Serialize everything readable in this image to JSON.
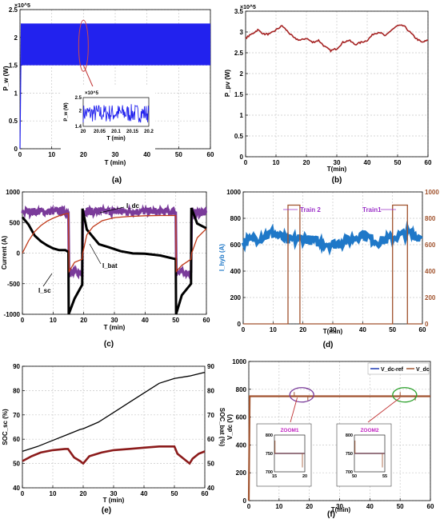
{
  "chart_data": [
    {
      "panel": "a",
      "caption": "(a)",
      "type": "line",
      "ylabel": "P_w (W)",
      "xlabel": "T (min)",
      "exponent": "×10^5",
      "xlim": [
        0,
        60
      ],
      "ylim": [
        0,
        2.5
      ],
      "xticks": [
        "0",
        "10",
        "20",
        "30",
        "40",
        "50",
        "60"
      ],
      "yticks": [
        "0",
        "0.5",
        "1",
        "1.5",
        "2",
        "2.5"
      ],
      "series": [
        {
          "color": "#2222ee",
          "band": [
            1.5,
            2.25
          ]
        }
      ],
      "inset": {
        "ylabel": "P_w (W)",
        "xlabel": "T (min)",
        "exponent": "×10^5",
        "xlim": [
          20,
          20.2
        ],
        "ylim": [
          1.4,
          2.5
        ],
        "xticks": [
          "20",
          "20.05",
          "20.1",
          "20.15",
          "20.2"
        ],
        "yticks": [
          "1.4",
          "2",
          "2.5"
        ]
      }
    },
    {
      "panel": "b",
      "caption": "(b)",
      "type": "line",
      "ylabel": "P_pv (W)",
      "xlabel": "T(min)",
      "exponent": "×10^5",
      "xlim": [
        0,
        60
      ],
      "ylim": [
        0,
        3.5
      ],
      "xticks": [
        "0",
        "10",
        "20",
        "30",
        "40",
        "50",
        "60"
      ],
      "yticks": [
        "0",
        "0.5",
        "1",
        "1.5",
        "2",
        "2.5",
        "3",
        "3.5"
      ],
      "series": [
        {
          "color": "#a52222",
          "x": [
            0,
            2,
            4,
            6,
            8,
            10,
            12,
            14,
            16,
            18,
            20,
            22,
            24,
            26,
            28,
            30,
            32,
            34,
            36,
            38,
            40,
            42,
            44,
            46,
            48,
            50,
            52,
            54,
            56,
            58,
            60
          ],
          "y": [
            2.85,
            2.95,
            3.05,
            2.95,
            2.95,
            3.05,
            3.15,
            3.0,
            2.85,
            2.8,
            2.85,
            2.75,
            2.8,
            2.65,
            2.55,
            2.6,
            2.75,
            2.8,
            2.7,
            2.75,
            2.8,
            2.95,
            3.0,
            2.9,
            3.05,
            3.15,
            3.15,
            3.0,
            2.85,
            2.75,
            2.8
          ]
        }
      ]
    },
    {
      "panel": "c",
      "caption": "(c)",
      "type": "line",
      "ylabel": "Current (A)",
      "xlabel": "T (min)",
      "xlim": [
        0,
        60
      ],
      "ylim": [
        -1000,
        1000
      ],
      "xticks": [
        "0",
        "10",
        "20",
        "30",
        "40",
        "50",
        "60"
      ],
      "yticks": [
        "-1000",
        "-500",
        "0",
        "500",
        "1000"
      ],
      "annotations": [
        "I_dc",
        "I_sc",
        "I_bat"
      ],
      "series": [
        {
          "name": "I_dc",
          "color": "#7a3b9a",
          "x": [
            0,
            15,
            15.2,
            19.5,
            19.7,
            50,
            50.2,
            55,
            55.2,
            60
          ],
          "y": [
            680,
            680,
            -320,
            -320,
            680,
            680,
            -320,
            -320,
            660,
            660
          ]
        },
        {
          "name": "I_bat",
          "color": "#000000",
          "x": [
            0,
            2,
            4,
            6,
            8,
            10,
            12,
            14,
            15,
            15.1,
            17,
            19.5,
            19.6,
            21,
            23,
            25,
            28,
            32,
            36,
            40,
            45,
            50,
            50.1,
            52,
            55,
            55.1,
            57,
            60
          ],
          "y": [
            600,
            450,
            300,
            200,
            120,
            80,
            50,
            30,
            20,
            -1000,
            -750,
            -500,
            740,
            400,
            250,
            150,
            80,
            30,
            10,
            -10,
            -40,
            -80,
            -1000,
            -700,
            -500,
            750,
            500,
            400
          ]
        },
        {
          "name": "I_sc",
          "color": "#c03a1a",
          "x": [
            0,
            2,
            4,
            6,
            8,
            10,
            12,
            14,
            15,
            15.2,
            17,
            19.5,
            19.7,
            21,
            23,
            26,
            30,
            35,
            40,
            45,
            50,
            50.2,
            52,
            55,
            55.2,
            57,
            60
          ],
          "y": [
            0,
            200,
            350,
            450,
            520,
            570,
            610,
            640,
            650,
            -300,
            -150,
            -100,
            0,
            300,
            430,
            530,
            580,
            600,
            610,
            615,
            615,
            -300,
            -200,
            -100,
            0,
            250,
            400
          ]
        }
      ]
    },
    {
      "panel": "d",
      "caption": "(d)",
      "type": "line",
      "ylabel": "I_hyb (A)",
      "xlabel": "T(min)",
      "xlim": [
        0,
        60
      ],
      "ylim": [
        0,
        1000
      ],
      "y2lim": [
        0,
        1000
      ],
      "xticks": [
        "0",
        "10",
        "20",
        "30",
        "40",
        "50",
        "60"
      ],
      "yticks": [
        "0",
        "200",
        "400",
        "600",
        "800",
        "1000"
      ],
      "y2ticks": [
        "0",
        "200",
        "400",
        "600",
        "800",
        "1000"
      ],
      "annotations": [
        "Train 2",
        "Train1"
      ],
      "series": [
        {
          "name": "I_hyb",
          "color": "#1f78c8",
          "x": [
            0,
            5,
            10,
            15,
            20,
            25,
            30,
            35,
            40,
            45,
            50,
            55,
            60
          ],
          "y": [
            620,
            650,
            690,
            630,
            650,
            620,
            600,
            630,
            680,
            620,
            650,
            690,
            650
          ]
        },
        {
          "name": "Train",
          "color": "#a0522d",
          "x": [
            0,
            15,
            15,
            19,
            19,
            50,
            50,
            55,
            55,
            60
          ],
          "y": [
            0,
            0,
            900,
            900,
            0,
            0,
            900,
            900,
            0,
            0
          ]
        }
      ]
    },
    {
      "panel": "e",
      "caption": "(e)",
      "type": "line",
      "ylabel": "SOC_sc (%)",
      "y2label": "SOC_bat (%)",
      "xlabel": "T (min)",
      "xlim": [
        0,
        60
      ],
      "ylim": [
        40,
        90
      ],
      "y2lim": [
        40,
        90
      ],
      "xticks": [
        "0",
        "10",
        "20",
        "30",
        "40",
        "50",
        "60"
      ],
      "yticks": [
        "40",
        "50",
        "60",
        "70",
        "80",
        "90"
      ],
      "y2ticks": [
        "40",
        "50",
        "60",
        "70",
        "80",
        "90"
      ],
      "series": [
        {
          "name": "SOC_bat",
          "color": "#000000",
          "x": [
            0,
            5,
            10,
            15,
            19,
            20,
            25,
            30,
            35,
            40,
            45,
            50,
            55,
            60
          ],
          "y": [
            55,
            57,
            59.5,
            62,
            64,
            64.3,
            67,
            71,
            75,
            79,
            83,
            85,
            86,
            87.5
          ]
        },
        {
          "name": "SOC_sc",
          "color": "#8b1a1a",
          "x": [
            0,
            3,
            6,
            10,
            14,
            15,
            17,
            19,
            20,
            22,
            26,
            30,
            35,
            40,
            45,
            50,
            51,
            53,
            55,
            56,
            58,
            60
          ],
          "y": [
            51,
            53,
            54.5,
            55.5,
            56,
            56,
            52.5,
            51,
            50,
            53,
            54.5,
            55.5,
            56,
            56.5,
            57,
            57,
            54,
            52,
            50,
            52,
            54,
            55
          ]
        }
      ]
    },
    {
      "panel": "f",
      "caption": "(f)",
      "type": "line",
      "ylabel": "V_dc (V)",
      "xlabel": "T(min)",
      "xlim": [
        0,
        60
      ],
      "ylim": [
        0,
        1000
      ],
      "xticks": [
        "0",
        "10",
        "20",
        "30",
        "40",
        "50",
        "60"
      ],
      "yticks": [
        "0",
        "200",
        "400",
        "600",
        "800",
        "1000"
      ],
      "legend": [
        "V_dc-ref",
        "V_dc"
      ],
      "legend_position": "top-right",
      "series": [
        {
          "name": "V_dc-ref",
          "color": "#1f3bb3",
          "x": [
            0,
            0.3,
            60
          ],
          "y": [
            0,
            750,
            750
          ]
        },
        {
          "name": "V_dc",
          "color": "#a0522d",
          "x": [
            0,
            0.3,
            60
          ],
          "y": [
            0,
            750,
            750
          ]
        }
      ],
      "zooms": [
        {
          "label": "ZOOM1",
          "color": "#7a3b9a",
          "xlim": [
            15,
            20
          ],
          "ylim": [
            700,
            800
          ],
          "xticks": [
            "15",
            "20"
          ],
          "yticks": [
            "700",
            "750",
            "800"
          ]
        },
        {
          "label": "ZOOM2",
          "color": "#2aa02a",
          "xlim": [
            50,
            55
          ],
          "ylim": [
            700,
            800
          ],
          "xticks": [
            "50",
            "55"
          ],
          "yticks": [
            "700",
            "750",
            "800"
          ]
        }
      ]
    }
  ]
}
